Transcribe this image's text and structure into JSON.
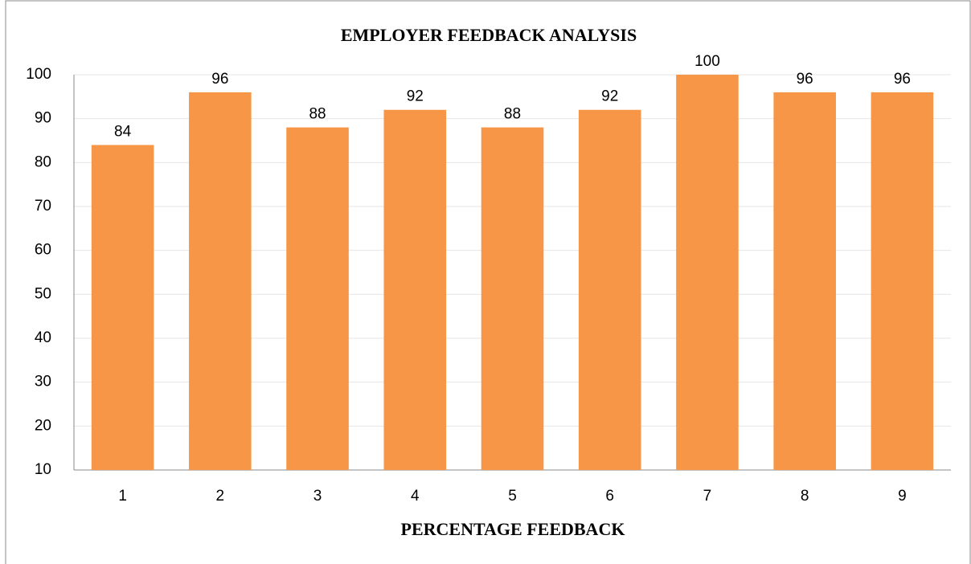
{
  "chart_data": {
    "type": "bar",
    "title": "EMPLOYER FEEDBACK ANALYSIS",
    "x_label": "PERCENTAGE FEEDBACK",
    "categories": [
      "1",
      "2",
      "3",
      "4",
      "5",
      "6",
      "7",
      "8",
      "9"
    ],
    "values": [
      84,
      96,
      88,
      92,
      88,
      92,
      100,
      96,
      96
    ],
    "color": "#f79646",
    "ylim": [
      10,
      100
    ],
    "yticks": [
      10,
      20,
      30,
      40,
      50,
      60,
      70,
      80,
      90,
      100
    ],
    "grid": true
  }
}
